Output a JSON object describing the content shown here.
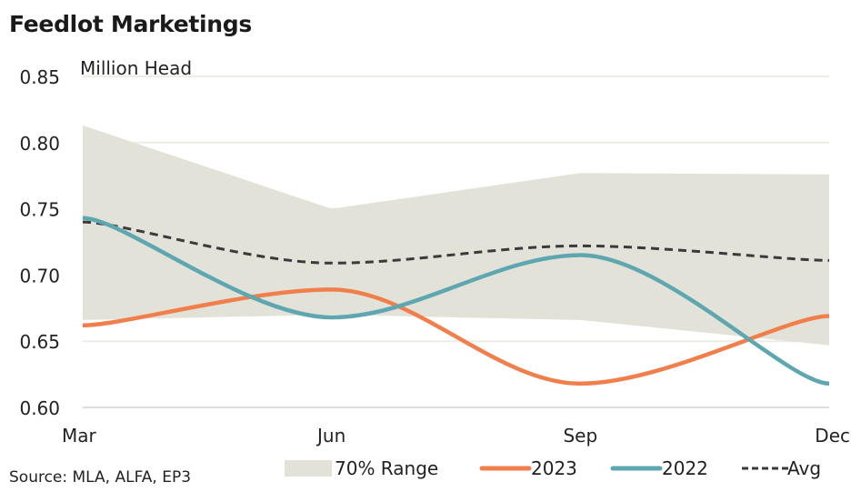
{
  "chart_data": {
    "type": "line",
    "title": "Feedlot Marketings",
    "ylabel": "Million Head",
    "xlabel": "",
    "categories": [
      "Mar",
      "Jun",
      "Sep",
      "Dec"
    ],
    "ylim": [
      0.6,
      0.85
    ],
    "yticks": [
      "0.60",
      "0.65",
      "0.70",
      "0.75",
      "0.80",
      "0.85"
    ],
    "ytick_values": [
      0.6,
      0.65,
      0.7,
      0.75,
      0.8,
      0.85
    ],
    "grid": true,
    "range": {
      "name": "70% Range",
      "upper": [
        0.813,
        0.75,
        0.777,
        0.776
      ],
      "lower": [
        0.666,
        0.67,
        0.666,
        0.647
      ],
      "color": "#e2e2d8"
    },
    "series": [
      {
        "name": "2023",
        "values": [
          0.662,
          0.689,
          0.618,
          0.669
        ],
        "color": "#f07f4c",
        "style": "solid"
      },
      {
        "name": "2022",
        "values": [
          0.743,
          0.668,
          0.715,
          0.618
        ],
        "color": "#5ea7b0",
        "style": "solid"
      },
      {
        "name": "Avg",
        "values": [
          0.74,
          0.709,
          0.722,
          0.711
        ],
        "color": "#3a3a3c",
        "style": "dashed"
      }
    ],
    "legend_position": "bottom",
    "source": "Source: MLA, ALFA, EP3"
  }
}
